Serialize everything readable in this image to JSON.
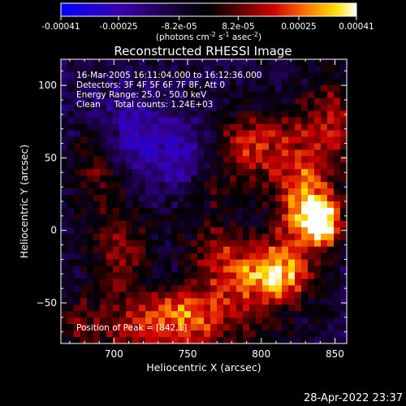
{
  "chart_data": {
    "type": "heatmap",
    "title": "Reconstructed RHESSI Image",
    "xlabel": "Heliocentric X (arcsec)",
    "ylabel": "Heliocentric Y (arcsec)",
    "xlim": [
      664,
      858
    ],
    "ylim": [
      -78,
      118
    ],
    "x_ticks": [
      700,
      750,
      800,
      850
    ],
    "x_tick_labels": [
      "700",
      "750",
      "800",
      "850"
    ],
    "y_ticks": [
      -50,
      0,
      50,
      100
    ],
    "y_tick_labels": [
      "−50",
      "0",
      "50",
      "100"
    ],
    "colorbar": {
      "range": [
        -0.00041,
        0.00041
      ],
      "ticks": [
        -0.00041,
        -0.00025,
        -8.2e-05,
        8.2e-05,
        0.00025,
        0.00041
      ],
      "tick_labels": [
        "-0.00041",
        "-0.00025",
        "-8.2e-05",
        "8.2e-05",
        "0.00025",
        "0.00041"
      ],
      "units_prefix": "(photons cm",
      "units_sup1": "-2",
      "units_mid": " s",
      "units_sup2": "-1",
      "units_mid2": " asec",
      "units_sup3": "-2",
      "units_suffix": ")"
    },
    "annotations": [
      "16-Mar-2005 16:11:04.000 to 16:12:36.000",
      "Detectors: 3F 4F 5F 6F 7F 8F, Att 0",
      "Energy Range: 25.0 - 50.0 keV",
      "Clean     Total counts: 1.24E+03"
    ],
    "peak_label": "Position of Peak = [842,1]",
    "peak": [
      842,
      1
    ],
    "sources": [
      {
        "x": 828,
        "y": 18,
        "amp": 0.00035,
        "sx": 14,
        "sy": 22
      },
      {
        "x": 843,
        "y": 6,
        "amp": 0.00041,
        "sx": 9,
        "sy": 12
      },
      {
        "x": 792,
        "y": 58,
        "amp": 0.00028,
        "sx": 16,
        "sy": 16
      },
      {
        "x": 835,
        "y": 62,
        "amp": 0.00018,
        "sx": 18,
        "sy": 20
      },
      {
        "x": 790,
        "y": -32,
        "amp": 0.0003,
        "sx": 22,
        "sy": 14
      },
      {
        "x": 745,
        "y": -55,
        "amp": 0.00032,
        "sx": 28,
        "sy": 10
      },
      {
        "x": 815,
        "y": -30,
        "amp": 0.00026,
        "sx": 14,
        "sy": 18
      },
      {
        "x": 705,
        "y": -15,
        "amp": 0.0002,
        "sx": 14,
        "sy": 22
      },
      {
        "x": 738,
        "y": -72,
        "amp": 0.00022,
        "sx": 40,
        "sy": 8
      },
      {
        "x": 690,
        "y": 45,
        "amp": 0.00016,
        "sx": 12,
        "sy": 26
      },
      {
        "x": 675,
        "y": -60,
        "amp": 0.00014,
        "sx": 10,
        "sy": 12
      },
      {
        "x": 760,
        "y": 25,
        "amp": 0.00012,
        "sx": 16,
        "sy": 12
      },
      {
        "x": 770,
        "y": -10,
        "amp": 0.00015,
        "sx": 16,
        "sy": 12
      },
      {
        "x": 850,
        "y": 85,
        "amp": 0.00014,
        "sx": 10,
        "sy": 20
      },
      {
        "x": 725,
        "y": 62,
        "amp": -0.00015,
        "sx": 22,
        "sy": 18
      },
      {
        "x": 745,
        "y": 40,
        "amp": -0.00012,
        "sx": 14,
        "sy": 14
      },
      {
        "x": 700,
        "y": 80,
        "amp": -0.0001,
        "sx": 16,
        "sy": 16
      }
    ]
  },
  "footer": {
    "timestamp": "28-Apr-2022 23:37"
  }
}
